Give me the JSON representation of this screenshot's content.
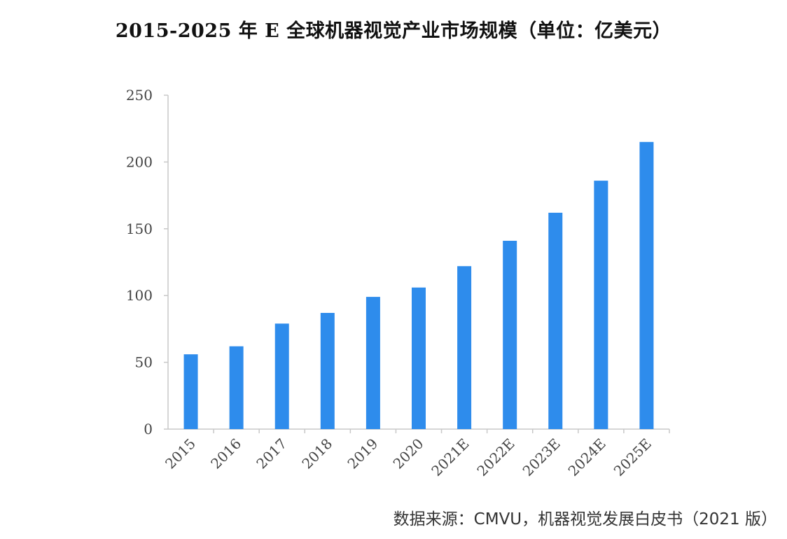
{
  "chart_data": {
    "type": "bar",
    "title": "2015-2025 年 E 全球机器视觉产业市场规模（单位：亿美元）",
    "categories": [
      "2015",
      "2016",
      "2017",
      "2018",
      "2019",
      "2020",
      "2021E",
      "2022E",
      "2023E",
      "2024E",
      "2025E"
    ],
    "series": [
      {
        "name": "全球机器视觉产业市场规模",
        "values": [
          56,
          62,
          79,
          87,
          99,
          106,
          122,
          141,
          162,
          186,
          215
        ]
      }
    ],
    "xlabel": "",
    "ylabel": "",
    "ylim": [
      0,
      250
    ],
    "yticks": [
      0,
      50,
      100,
      150,
      200,
      250
    ],
    "grid": false,
    "legend": "none",
    "bar_color": "#2e8cec",
    "axis_color": "#c8c8c8"
  },
  "source": "数据来源：CMVU，机器视觉发展白皮书（2021 版）"
}
